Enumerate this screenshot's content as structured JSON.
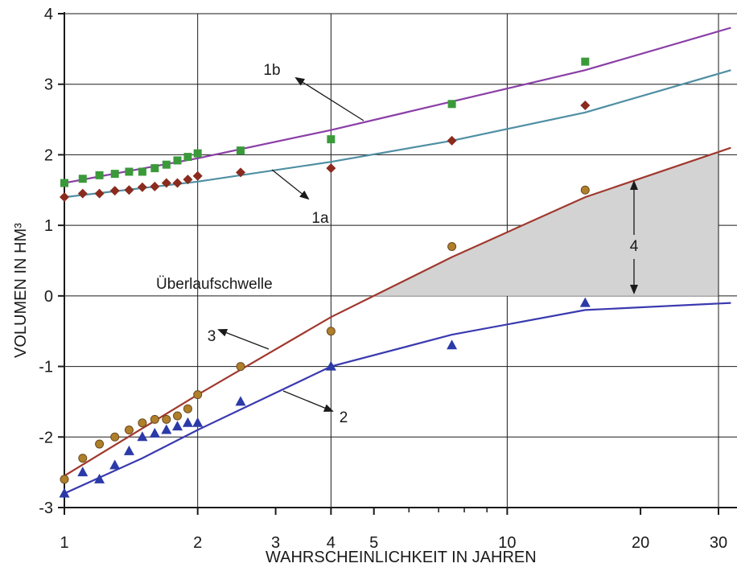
{
  "chart_data": {
    "type": "line",
    "title": "",
    "xlabel": "WAHRSCHEINLICHKEIT IN JAHREN",
    "ylabel": "VOLUMEN  IN HM³",
    "xscale": "log",
    "xlim": [
      1,
      32
    ],
    "ylim": [
      -3,
      4
    ],
    "grid": true,
    "x_tick_labels": [
      "1",
      "2",
      "3",
      "4",
      "5",
      "10",
      "20",
      "30"
    ],
    "x_ticks": [
      1,
      2,
      3,
      4,
      5,
      10,
      20,
      30
    ],
    "x_minor_ticks": [
      6,
      7,
      8,
      9
    ],
    "x_grid": [
      1,
      2,
      4,
      10,
      30
    ],
    "y_ticks": [
      -3,
      -2,
      -1,
      0,
      1,
      2,
      3,
      4
    ],
    "y_tick_labels": [
      "-3",
      "-2",
      "-1",
      "0",
      "1",
      "2",
      "3",
      "4"
    ],
    "colors": {
      "1b": "#8a3fa6",
      "1a": "#4f8fa3",
      "3": "#a0392e",
      "2": "#3a3ab0",
      "square": "#3a9a3a",
      "diamond": "#8a2b1e",
      "circle": "#b07f2a",
      "triangle": "#2b3aa8",
      "shade": "#d3d3d3",
      "grid": "#1a1a1a"
    },
    "series": [
      {
        "label": "1b",
        "line": {
          "x": [
            1,
            2,
            4,
            15,
            32
          ],
          "y": [
            1.6,
            1.95,
            2.35,
            3.2,
            3.8
          ]
        },
        "points_marker": "square",
        "points": {
          "x": [
            1,
            1.1,
            1.2,
            1.3,
            1.4,
            1.5,
            1.6,
            1.7,
            1.8,
            1.9,
            2.0,
            2.5,
            4,
            7.5,
            15
          ],
          "y": [
            1.6,
            1.66,
            1.71,
            1.73,
            1.76,
            1.76,
            1.81,
            1.86,
            1.92,
            1.97,
            2.02,
            2.06,
            2.22,
            2.72,
            3.32
          ]
        }
      },
      {
        "label": "1a",
        "line": {
          "x": [
            1,
            2,
            4,
            7.5,
            15,
            32
          ],
          "y": [
            1.4,
            1.62,
            1.9,
            2.2,
            2.6,
            3.2
          ]
        },
        "points_marker": "diamond",
        "points": {
          "x": [
            1,
            1.1,
            1.2,
            1.3,
            1.4,
            1.5,
            1.6,
            1.7,
            1.8,
            1.9,
            2.0,
            2.5,
            4,
            7.5,
            15
          ],
          "y": [
            1.4,
            1.45,
            1.45,
            1.49,
            1.5,
            1.54,
            1.55,
            1.6,
            1.6,
            1.65,
            1.7,
            1.75,
            1.81,
            2.2,
            2.7
          ]
        }
      },
      {
        "label": "3",
        "line": {
          "x": [
            1,
            2,
            4,
            7.5,
            15,
            32
          ],
          "y": [
            -2.55,
            -1.4,
            -0.3,
            0.55,
            1.4,
            2.1
          ]
        },
        "points_marker": "circle",
        "points": {
          "x": [
            1,
            1.1,
            1.2,
            1.3,
            1.4,
            1.5,
            1.6,
            1.7,
            1.8,
            1.9,
            2.0,
            2.5,
            4,
            7.5,
            15
          ],
          "y": [
            -2.6,
            -2.3,
            -2.1,
            -2.0,
            -1.9,
            -1.8,
            -1.75,
            -1.75,
            -1.7,
            -1.6,
            -1.4,
            -1.0,
            -0.5,
            0.7,
            1.5
          ]
        }
      },
      {
        "label": "2",
        "line": {
          "x": [
            1,
            1.5,
            2,
            4,
            7.5,
            15,
            32
          ],
          "y": [
            -2.8,
            -2.3,
            -1.9,
            -1.0,
            -0.55,
            -0.2,
            -0.1
          ]
        },
        "points_marker": "triangle",
        "points": {
          "x": [
            1,
            1.1,
            1.2,
            1.3,
            1.4,
            1.5,
            1.6,
            1.7,
            1.8,
            1.9,
            2.0,
            2.5,
            4,
            7.5,
            15
          ],
          "y": [
            -2.8,
            -2.5,
            -2.6,
            -2.4,
            -2.2,
            -2.0,
            -1.95,
            -1.9,
            -1.85,
            -1.8,
            -1.8,
            -1.5,
            -1.0,
            -0.7,
            -0.1
          ]
        }
      }
    ],
    "shaded_region": {
      "label": "4",
      "description_text": "",
      "baseline_y": 0,
      "x_end": 30
    },
    "annotations": [
      {
        "text": "1b"
      },
      {
        "text": "1a"
      },
      {
        "text": "3"
      },
      {
        "text": "2"
      },
      {
        "text": "4"
      },
      {
        "text": "Überlaufschwelle"
      }
    ]
  }
}
